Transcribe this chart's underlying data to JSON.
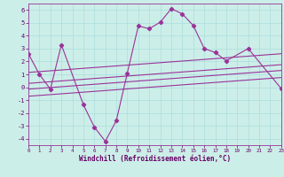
{
  "background_color": "#cceee8",
  "grid_color": "#aadddd",
  "line_color": "#993399",
  "xlabel": "Windchill (Refroidissement éolien,°C)",
  "xlim": [
    0,
    23
  ],
  "ylim": [
    -4.5,
    6.5
  ],
  "yticks": [
    -4,
    -3,
    -2,
    -1,
    0,
    1,
    2,
    3,
    4,
    5,
    6
  ],
  "xticks": [
    0,
    1,
    2,
    3,
    4,
    5,
    6,
    7,
    8,
    9,
    10,
    11,
    12,
    13,
    14,
    15,
    16,
    17,
    18,
    19,
    20,
    21,
    22,
    23
  ],
  "main_line_x": [
    0,
    1,
    2,
    3,
    5,
    6,
    7,
    8,
    9,
    10,
    11,
    12,
    13,
    14,
    15,
    16,
    17,
    18,
    20,
    23
  ],
  "main_line_y": [
    2.6,
    1.0,
    -0.15,
    3.3,
    -1.35,
    -3.1,
    -4.2,
    -2.6,
    1.1,
    4.75,
    4.55,
    5.05,
    6.1,
    5.7,
    4.8,
    3.0,
    2.7,
    2.05,
    3.0,
    -0.1
  ],
  "reg_line1_x": [
    0,
    23
  ],
  "reg_line1_y": [
    1.15,
    2.6
  ],
  "reg_line2_x": [
    0,
    23
  ],
  "reg_line2_y": [
    0.3,
    1.75
  ],
  "reg_line3_x": [
    0,
    23
  ],
  "reg_line3_y": [
    -0.15,
    1.3
  ],
  "reg_line4_x": [
    0,
    23
  ],
  "reg_line4_y": [
    -0.7,
    0.75
  ]
}
